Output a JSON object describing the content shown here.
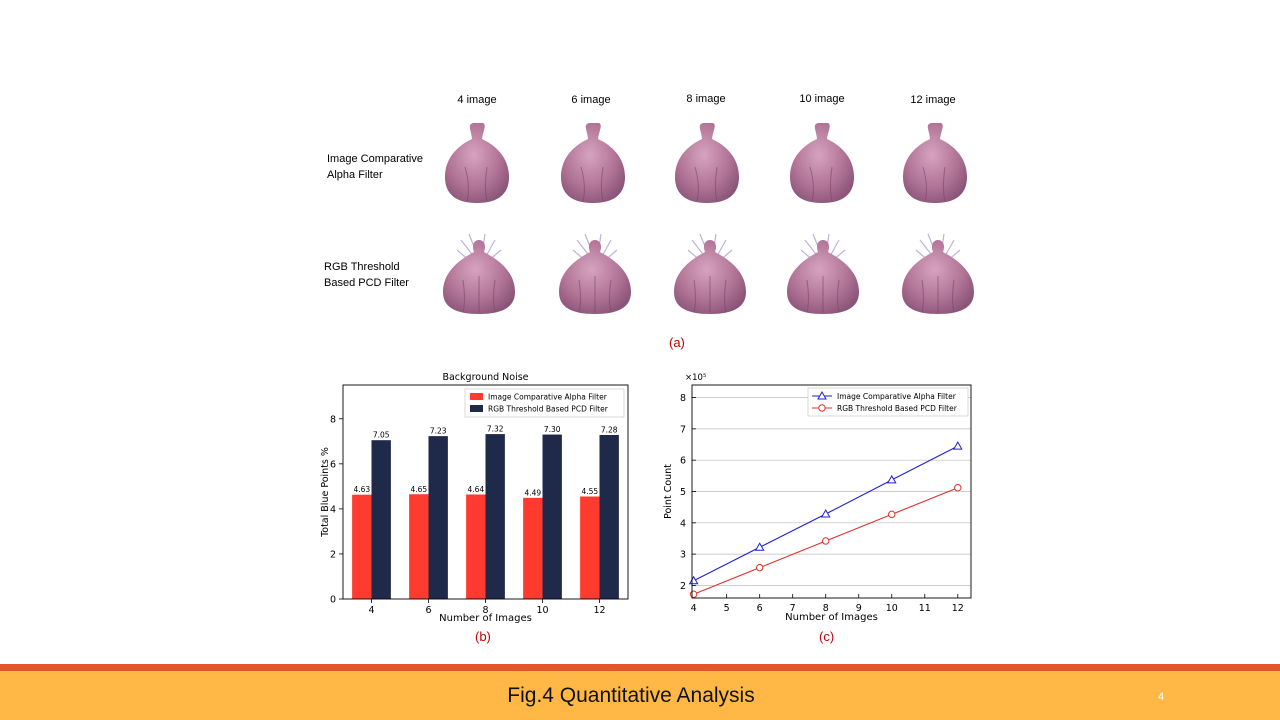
{
  "panel_a": {
    "columns": [
      "4 image",
      "6 image",
      "8 image",
      "10 image",
      "12 image"
    ],
    "rows": [
      {
        "line1": "Image Comparative",
        "line2": "Alpha Filter"
      },
      {
        "line1": "RGB Threshold",
        "line2": "Based PCD Filter"
      }
    ],
    "caption": "(a)"
  },
  "captions": {
    "b": "(b)",
    "c": "(c)"
  },
  "colors": {
    "red": "#ff3b2f",
    "navy": "#1f2a4a",
    "blue_line": "#1f1fd6",
    "red_line": "#e0302a",
    "bulb": "#c48aa6"
  },
  "chart_data": [
    {
      "type": "bar",
      "title": "Background Noise",
      "xlabel": "Number of Images",
      "ylabel": "Total Blue Points %",
      "categories": [
        "4",
        "6",
        "8",
        "10",
        "12"
      ],
      "ylim": [
        0,
        9.5
      ],
      "yticks": [
        "0",
        "2",
        "4",
        "6",
        "8"
      ],
      "legend_position": "top-right",
      "series": [
        {
          "name": "Image Comparative Alpha Filter",
          "values": [
            4.63,
            4.65,
            4.64,
            4.49,
            4.55
          ],
          "labels": [
            "4.63",
            "4.65",
            "4.64",
            "4.49",
            "4.55"
          ],
          "color": "#ff3b2f"
        },
        {
          "name": "RGB Threshold Based PCD Filter",
          "values": [
            7.05,
            7.23,
            7.32,
            7.3,
            7.28
          ],
          "labels": [
            "7.05",
            "7.23",
            "7.32",
            "7.30",
            "7.28"
          ],
          "color": "#1f2a4a"
        }
      ]
    },
    {
      "type": "line",
      "xlabel": "Number of Images",
      "ylabel": "Point Count",
      "scale_label": "×10⁵",
      "x": [
        4,
        6,
        8,
        10,
        12
      ],
      "xlim": [
        3.95,
        12.4
      ],
      "ylim": [
        1.6,
        8.4
      ],
      "xticks": [
        "4",
        "5",
        "6",
        "7",
        "8",
        "9",
        "10",
        "11",
        "12"
      ],
      "yticks": [
        "2",
        "3",
        "4",
        "5",
        "6",
        "7",
        "8"
      ],
      "grid": true,
      "legend_position": "top-right",
      "series": [
        {
          "name": "Image Comparative Alpha Filter",
          "values": [
            2.15,
            3.22,
            4.28,
            5.37,
            6.45
          ],
          "marker": "triangle",
          "color": "#1f1fd6"
        },
        {
          "name": "RGB Threshold Based PCD Filter",
          "values": [
            1.72,
            2.57,
            3.42,
            4.27,
            5.12
          ],
          "marker": "circle",
          "color": "#e0302a"
        }
      ]
    }
  ],
  "footer": {
    "title": "Fig.4 Quantitative Analysis",
    "page_number": "4"
  }
}
